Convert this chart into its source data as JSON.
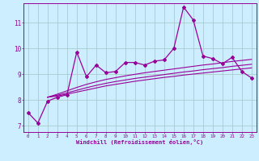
{
  "xlabel": "Windchill (Refroidissement éolien,°C)",
  "background_color": "#cceeff",
  "grid_color": "#aacccc",
  "line_color": "#990099",
  "xlim": [
    -0.5,
    23.5
  ],
  "ylim": [
    6.75,
    11.75
  ],
  "yticks": [
    7,
    8,
    9,
    10,
    11
  ],
  "xticks": [
    0,
    1,
    2,
    3,
    4,
    5,
    6,
    7,
    8,
    9,
    10,
    11,
    12,
    13,
    14,
    15,
    16,
    17,
    18,
    19,
    20,
    21,
    22,
    23
  ],
  "main_line_x": [
    0,
    1,
    2,
    3,
    4,
    5,
    6,
    7,
    8,
    9,
    10,
    11,
    12,
    13,
    14,
    15,
    16,
    17,
    18,
    19,
    20,
    21,
    22,
    23
  ],
  "main_line_y": [
    7.5,
    7.1,
    7.95,
    8.1,
    8.2,
    9.85,
    8.9,
    9.35,
    9.05,
    9.1,
    9.45,
    9.45,
    9.35,
    9.5,
    9.55,
    10.0,
    11.6,
    11.1,
    9.7,
    9.6,
    9.4,
    9.65,
    9.1,
    8.85
  ],
  "trend1_x": [
    2,
    3,
    4,
    5,
    6,
    7,
    8,
    9,
    10,
    11,
    12,
    13,
    14,
    15,
    16,
    17,
    18,
    19,
    20,
    21,
    22,
    23
  ],
  "trend1_y": [
    8.1,
    8.15,
    8.22,
    8.3,
    8.38,
    8.46,
    8.54,
    8.6,
    8.66,
    8.72,
    8.77,
    8.82,
    8.87,
    8.91,
    8.96,
    9.0,
    9.04,
    9.08,
    9.12,
    9.16,
    9.2,
    9.24
  ],
  "trend2_x": [
    2,
    3,
    4,
    5,
    6,
    7,
    8,
    9,
    10,
    11,
    12,
    13,
    14,
    15,
    16,
    17,
    18,
    19,
    20,
    21,
    22,
    23
  ],
  "trend2_y": [
    8.1,
    8.18,
    8.27,
    8.37,
    8.47,
    8.56,
    8.64,
    8.71,
    8.77,
    8.83,
    8.88,
    8.93,
    8.98,
    9.03,
    9.08,
    9.12,
    9.17,
    9.21,
    9.25,
    9.3,
    9.34,
    9.38
  ],
  "trend3_x": [
    2,
    3,
    4,
    5,
    6,
    7,
    8,
    9,
    10,
    11,
    12,
    13,
    14,
    15,
    16,
    17,
    18,
    19,
    20,
    21,
    22,
    23
  ],
  "trend3_y": [
    8.1,
    8.22,
    8.35,
    8.48,
    8.6,
    8.7,
    8.79,
    8.86,
    8.93,
    8.99,
    9.05,
    9.1,
    9.15,
    9.2,
    9.25,
    9.3,
    9.35,
    9.39,
    9.44,
    9.49,
    9.53,
    9.57
  ]
}
